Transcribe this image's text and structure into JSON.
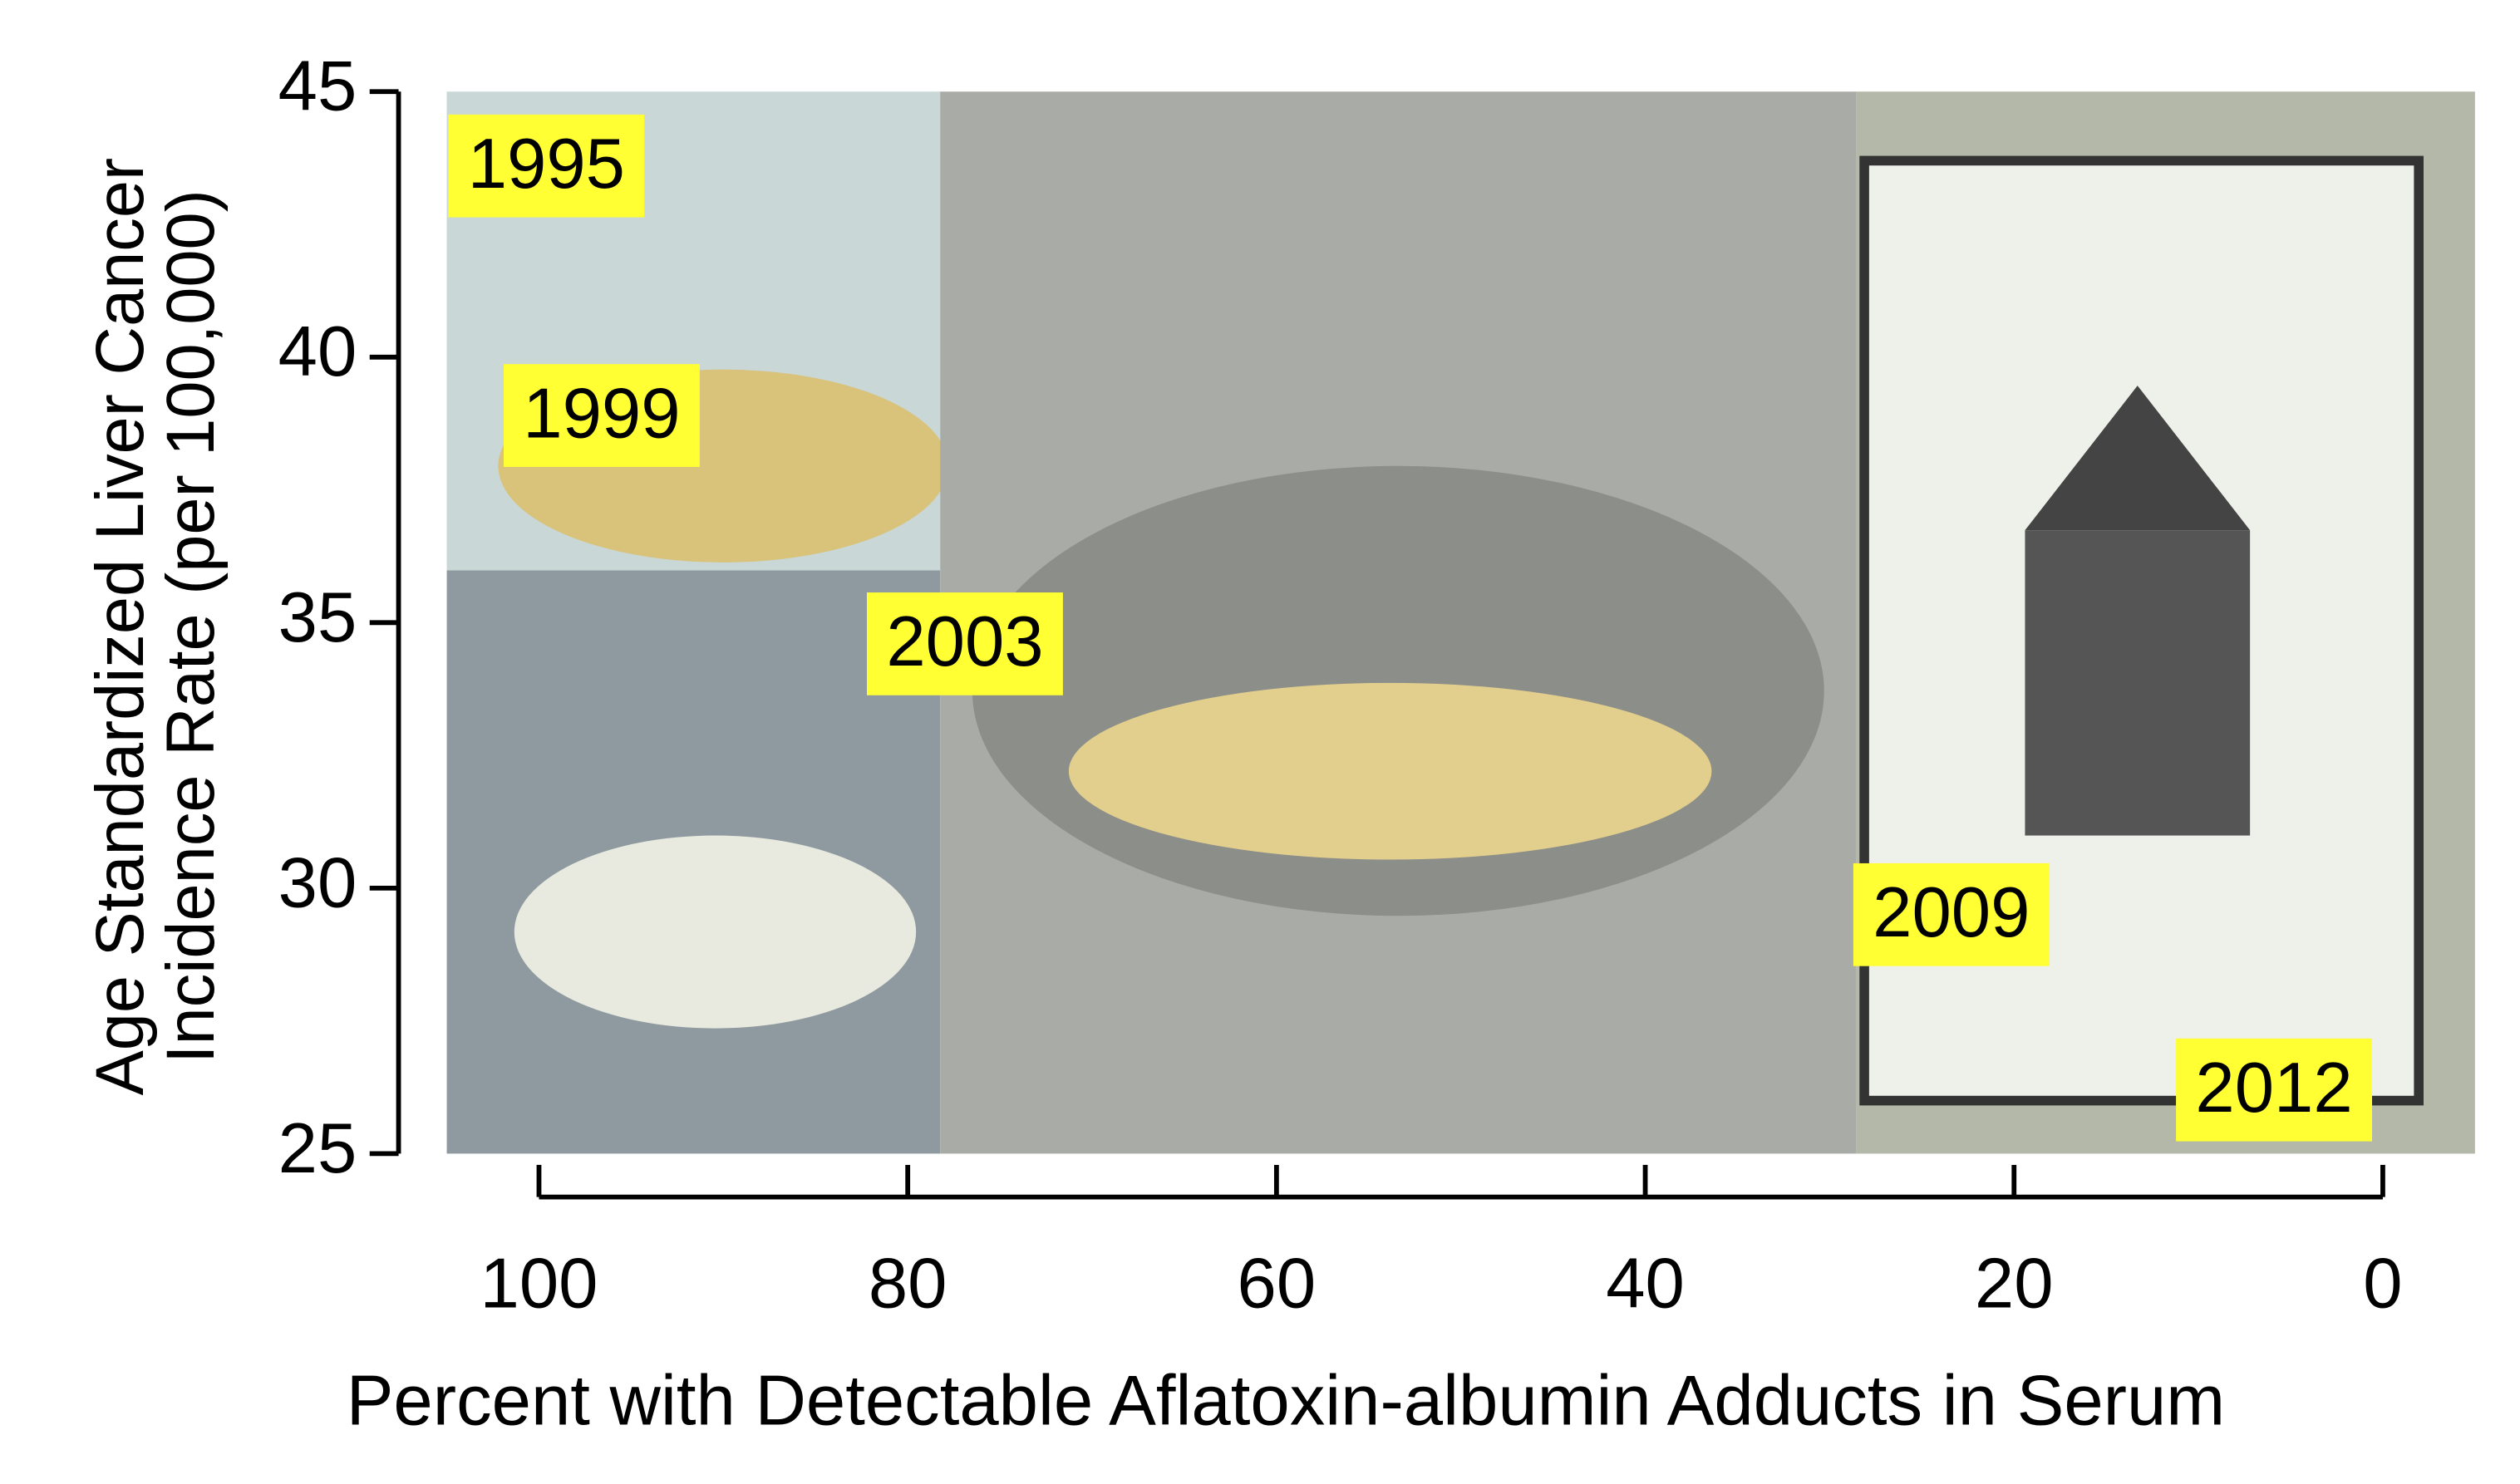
{
  "chart_data": {
    "type": "scatter",
    "xlabel": "Percent with Detectable Aflatoxin-albumin Adducts in Serum",
    "ylabel": [
      "Age Standardized Liver Cancer",
      "Incidence Rate (per 100,000)"
    ],
    "labels": [
      "1995",
      "1999",
      "2003",
      "2009",
      "2012"
    ],
    "x": [
      99.6,
      96.6,
      76.9,
      23.4,
      5.9
    ],
    "values": [
      43.6,
      38.9,
      34.6,
      29.5,
      26.2
    ],
    "color": "#ffff33",
    "xlim": [
      105,
      -5
    ],
    "xticks": [
      100,
      80,
      60,
      40,
      20,
      0
    ],
    "ylim": [
      25,
      45
    ],
    "yticks": [
      25,
      30,
      35,
      40,
      45
    ]
  }
}
